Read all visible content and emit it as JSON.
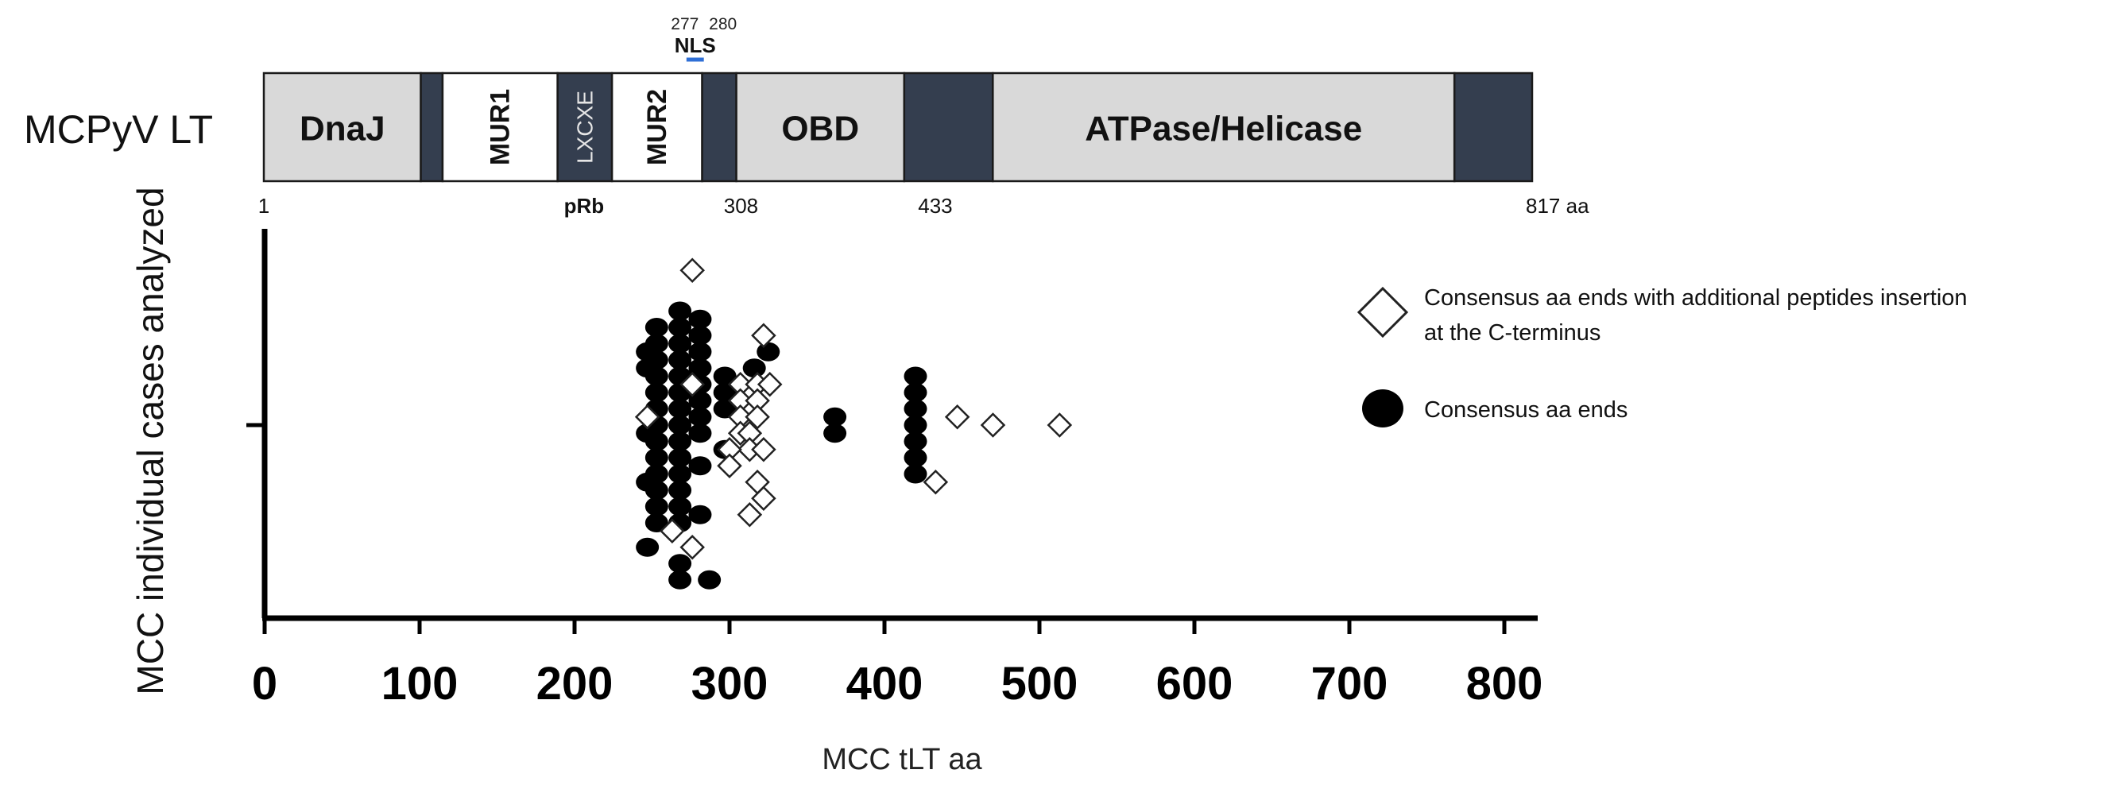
{
  "protein_map": {
    "name": "MCPyV LT",
    "total_label": "817 aa",
    "domains": [
      {
        "key": "dnaj",
        "label": "DnaJ",
        "start": 1,
        "end": 102,
        "style": "light",
        "orient": "h"
      },
      {
        "key": "dark1",
        "label": "",
        "start": 102,
        "end": 116,
        "style": "dark",
        "orient": "h"
      },
      {
        "key": "mur1",
        "label": "MUR1",
        "start": 116,
        "end": 190,
        "style": "white",
        "orient": "v"
      },
      {
        "key": "lxcxe",
        "label": "LXCXE",
        "start": 190,
        "end": 225,
        "style": "dark",
        "orient": "v"
      },
      {
        "key": "mur2",
        "label": "MUR2",
        "start": 225,
        "end": 283,
        "style": "white",
        "orient": "v"
      },
      {
        "key": "dark2",
        "label": "",
        "start": 283,
        "end": 305,
        "style": "dark",
        "orient": "h"
      },
      {
        "key": "obd",
        "label": "OBD",
        "start": 305,
        "end": 413,
        "style": "light",
        "orient": "h"
      },
      {
        "key": "dark3",
        "label": "",
        "start": 413,
        "end": 470,
        "style": "dark",
        "orient": "h"
      },
      {
        "key": "atpase",
        "label": "ATPase/Helicase",
        "start": 470,
        "end": 767,
        "style": "light",
        "orient": "h"
      },
      {
        "key": "dark4",
        "label": "",
        "start": 767,
        "end": 817,
        "style": "dark",
        "orient": "h"
      }
    ],
    "nls": {
      "label": "NLS",
      "start": 277,
      "end": 280,
      "start_label": "277",
      "end_label": "280",
      "color": "#2f6fd6"
    },
    "below_labels": [
      {
        "label": "1",
        "pos": 1,
        "bold": false
      },
      {
        "label": "pRb",
        "pos": 207,
        "bold": true
      },
      {
        "label": "308",
        "pos": 308,
        "bold": false
      },
      {
        "label": "433",
        "pos": 433,
        "bold": false
      }
    ],
    "colors": {
      "light": "#d9d9d9",
      "dark": "#343e4f",
      "white": "#ffffff",
      "outline": "#1a1a1a"
    }
  },
  "chart_data": {
    "type": "scatter",
    "title": "",
    "xlabel": "MCC tLT aa",
    "ylabel": "MCC individual cases analyzed",
    "xlim": [
      0,
      817
    ],
    "xticks": [
      "0",
      "100",
      "200",
      "300",
      "400",
      "500",
      "600",
      "700",
      "800"
    ],
    "xtick_values": [
      0,
      100,
      200,
      300,
      400,
      500,
      600,
      700,
      800
    ],
    "legend_position": "right",
    "series": [
      {
        "key": "filled",
        "name": "Consensus aa ends",
        "marker": "circle",
        "color": "#000000",
        "points": [
          {
            "x": 253,
            "y": 6.0
          },
          {
            "x": 253,
            "y": 5.0
          },
          {
            "x": 253,
            "y": 4.0
          },
          {
            "x": 253,
            "y": 3.0
          },
          {
            "x": 253,
            "y": 2.0
          },
          {
            "x": 253,
            "y": 1.0
          },
          {
            "x": 253,
            "y": 0.0
          },
          {
            "x": 253,
            "y": -1.0
          },
          {
            "x": 253,
            "y": -2.0
          },
          {
            "x": 253,
            "y": -3.0
          },
          {
            "x": 253,
            "y": -4.0
          },
          {
            "x": 253,
            "y": -5.0
          },
          {
            "x": 253,
            "y": -6.0
          },
          {
            "x": 247,
            "y": 4.5
          },
          {
            "x": 247,
            "y": 3.5
          },
          {
            "x": 247,
            "y": -0.5
          },
          {
            "x": 247,
            "y": -3.5
          },
          {
            "x": 247,
            "y": -7.5
          },
          {
            "x": 268,
            "y": 7.0
          },
          {
            "x": 268,
            "y": 6.0
          },
          {
            "x": 268,
            "y": 5.0
          },
          {
            "x": 268,
            "y": 4.0
          },
          {
            "x": 268,
            "y": 3.0
          },
          {
            "x": 268,
            "y": 2.0
          },
          {
            "x": 268,
            "y": 1.0
          },
          {
            "x": 268,
            "y": 0.0
          },
          {
            "x": 268,
            "y": -1.0
          },
          {
            "x": 268,
            "y": -2.0
          },
          {
            "x": 268,
            "y": -3.0
          },
          {
            "x": 268,
            "y": -4.0
          },
          {
            "x": 268,
            "y": -5.0
          },
          {
            "x": 268,
            "y": -6.0
          },
          {
            "x": 268,
            "y": -8.5
          },
          {
            "x": 268,
            "y": -9.5
          },
          {
            "x": 281,
            "y": 6.5
          },
          {
            "x": 281,
            "y": 5.5
          },
          {
            "x": 281,
            "y": 4.5
          },
          {
            "x": 281,
            "y": 3.5
          },
          {
            "x": 281,
            "y": 2.5
          },
          {
            "x": 281,
            "y": 1.5
          },
          {
            "x": 281,
            "y": 0.5
          },
          {
            "x": 281,
            "y": -0.5
          },
          {
            "x": 281,
            "y": -2.5
          },
          {
            "x": 281,
            "y": -5.5
          },
          {
            "x": 287,
            "y": -9.5
          },
          {
            "x": 297,
            "y": 3.0
          },
          {
            "x": 297,
            "y": 2.0
          },
          {
            "x": 297,
            "y": 1.0
          },
          {
            "x": 297,
            "y": -1.5
          },
          {
            "x": 316,
            "y": 3.5
          },
          {
            "x": 325,
            "y": 4.5
          },
          {
            "x": 368,
            "y": 0.5
          },
          {
            "x": 368,
            "y": -0.5
          },
          {
            "x": 420,
            "y": 3.0
          },
          {
            "x": 420,
            "y": 2.0
          },
          {
            "x": 420,
            "y": 1.0
          },
          {
            "x": 420,
            "y": 0.0
          },
          {
            "x": 420,
            "y": -1.0
          },
          {
            "x": 420,
            "y": -2.0
          },
          {
            "x": 420,
            "y": -3.0
          }
        ]
      },
      {
        "key": "open",
        "name": "Consensus aa ends with additional peptides insertion at the C-terminus",
        "marker": "diamond",
        "color": "#ffffff",
        "points": [
          {
            "x": 276,
            "y": 9.5
          },
          {
            "x": 247,
            "y": 0.5
          },
          {
            "x": 276,
            "y": 2.5
          },
          {
            "x": 263,
            "y": -6.5
          },
          {
            "x": 276,
            "y": -7.5
          },
          {
            "x": 322,
            "y": 5.5
          },
          {
            "x": 307,
            "y": 2.5
          },
          {
            "x": 307,
            "y": 1.5
          },
          {
            "x": 307,
            "y": 0.5
          },
          {
            "x": 307,
            "y": -0.5
          },
          {
            "x": 318,
            "y": 2.5
          },
          {
            "x": 318,
            "y": 1.5
          },
          {
            "x": 318,
            "y": 0.5
          },
          {
            "x": 326,
            "y": 2.5
          },
          {
            "x": 313,
            "y": -0.5
          },
          {
            "x": 313,
            "y": -1.5
          },
          {
            "x": 300,
            "y": -1.5
          },
          {
            "x": 300,
            "y": -2.5
          },
          {
            "x": 322,
            "y": -1.5
          },
          {
            "x": 318,
            "y": -3.5
          },
          {
            "x": 322,
            "y": -4.5
          },
          {
            "x": 313,
            "y": -5.5
          },
          {
            "x": 447,
            "y": 0.5
          },
          {
            "x": 470,
            "y": 0.0
          },
          {
            "x": 513,
            "y": 0.0
          },
          {
            "x": 433,
            "y": -3.5
          }
        ]
      }
    ]
  }
}
